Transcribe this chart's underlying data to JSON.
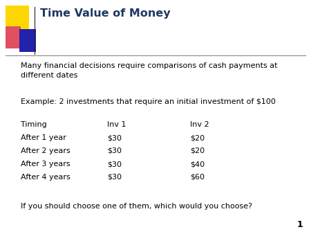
{
  "title": "Time Value of Money",
  "title_color": "#1F3864",
  "title_fontsize": 11.5,
  "background_color": "#FFFFFF",
  "body_text_color": "#000000",
  "body_fontsize": 8.0,
  "slide_number": "1",
  "paragraph1": "Many financial decisions require comparisons of cash payments at\ndifferent dates",
  "paragraph2": "Example: 2 investments that require an initial investment of $100",
  "table_header": [
    "Timing",
    "Inv 1",
    "Inv 2"
  ],
  "table_rows": [
    [
      "After 1 year",
      "$30",
      "$20"
    ],
    [
      "After 2 years",
      "$30",
      "$20"
    ],
    [
      "After 3 years",
      "$30",
      "$40"
    ],
    [
      "After 4 years",
      "$30",
      "$60"
    ]
  ],
  "footer_text": "If you should choose one of them, which would you choose?",
  "yellow_color": "#FFD700",
  "red_color": "#E05060",
  "blue_color": "#2222AA",
  "line_color": "#888888"
}
